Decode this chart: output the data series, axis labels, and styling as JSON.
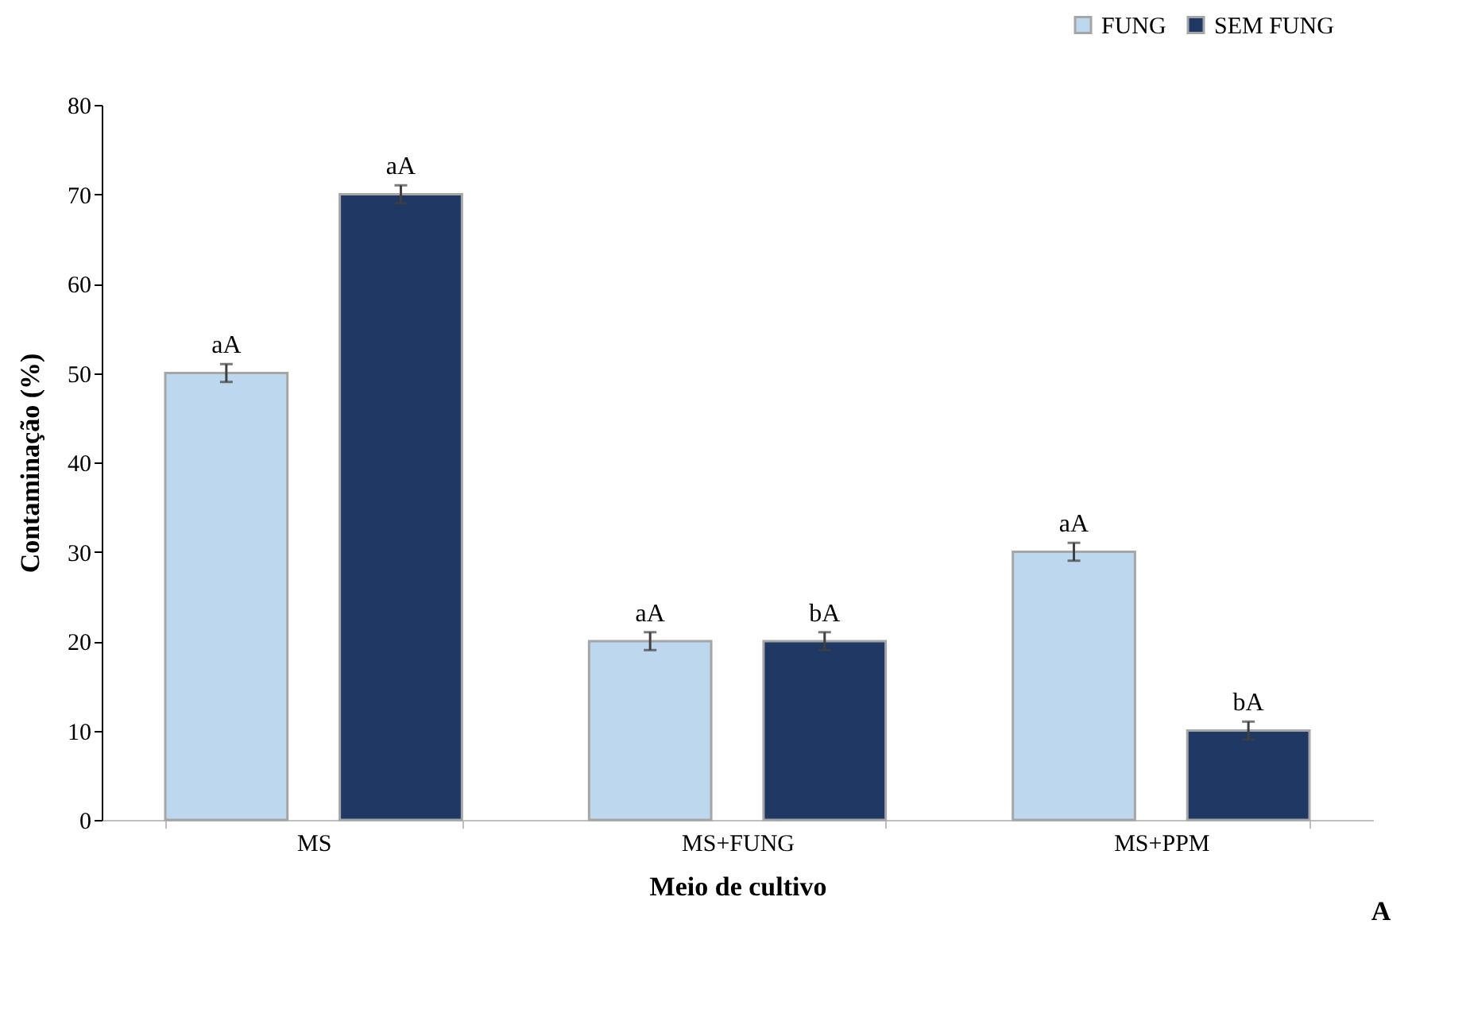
{
  "chart_data": {
    "type": "bar",
    "xlabel": "Meio de cultivo",
    "ylabel": "Contaminação (%)",
    "categories": [
      "MS",
      "MS+FUNG",
      "MS+PPM"
    ],
    "series": [
      {
        "name": "FUNG",
        "color": "#bdd7ee",
        "values": [
          50,
          20,
          30
        ],
        "errors": [
          1,
          1,
          1
        ],
        "value_labels": [
          "aA",
          "aA",
          "aA"
        ]
      },
      {
        "name": "SEM FUNG",
        "color": "#1f3864",
        "values": [
          70,
          20,
          10
        ],
        "errors": [
          1,
          1,
          1
        ],
        "value_labels": [
          "aA",
          "bA",
          "bA"
        ]
      }
    ],
    "ylim": [
      0,
      80
    ],
    "yticks": [
      0,
      10,
      20,
      30,
      40,
      50,
      60,
      70,
      80
    ],
    "grid": false,
    "legend": "top right",
    "annotations": [
      "A"
    ]
  }
}
